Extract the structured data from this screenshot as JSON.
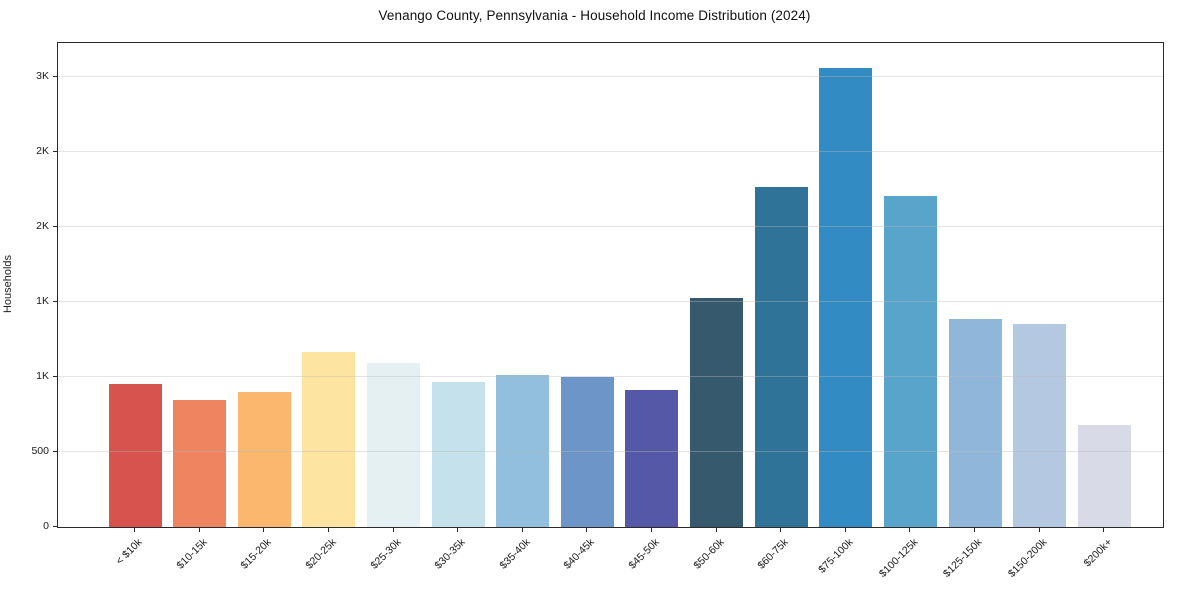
{
  "chart_data": {
    "type": "bar",
    "title": "Venango County, Pennsylvania - Household Income Distribution (2024)",
    "xlabel": "",
    "ylabel": "Households",
    "categories": [
      "< $10k",
      "$10-15k",
      "$15-20k",
      "$20-25k",
      "$25-30k",
      "$30-35k",
      "$35-40k",
      "$40-45k",
      "$45-50k",
      "$50-60k",
      "$60-75k",
      "$75-100k",
      "$100-125k",
      "$125-150k",
      "$150-200k",
      "$200k+"
    ],
    "values": [
      955,
      850,
      900,
      1170,
      1095,
      970,
      1015,
      1000,
      915,
      1530,
      2265,
      3060,
      2205,
      1385,
      1355,
      680
    ],
    "bar_colors": [
      "#d6534e",
      "#ef8460",
      "#fbb76d",
      "#fde4a1",
      "#e5f0f2",
      "#c4e1ec",
      "#92bfdd",
      "#6d95c7",
      "#5558a6",
      "#36596e",
      "#2f7398",
      "#338bc3",
      "#58a4ca",
      "#90b7da",
      "#b5c8e1",
      "#d9dae7"
    ],
    "ylim": [
      0,
      3227
    ],
    "yticks": {
      "values": [
        0,
        500,
        1000,
        1500,
        2000,
        2500,
        3000
      ],
      "labels": [
        "0",
        "500",
        "1K",
        "1K",
        "2K",
        "2K",
        "3K"
      ]
    },
    "grid": "horizontal",
    "legend": "none",
    "x_tick_rotation": 45,
    "background_color": "#ffffff",
    "gridline_color": "#e5e5e5"
  }
}
